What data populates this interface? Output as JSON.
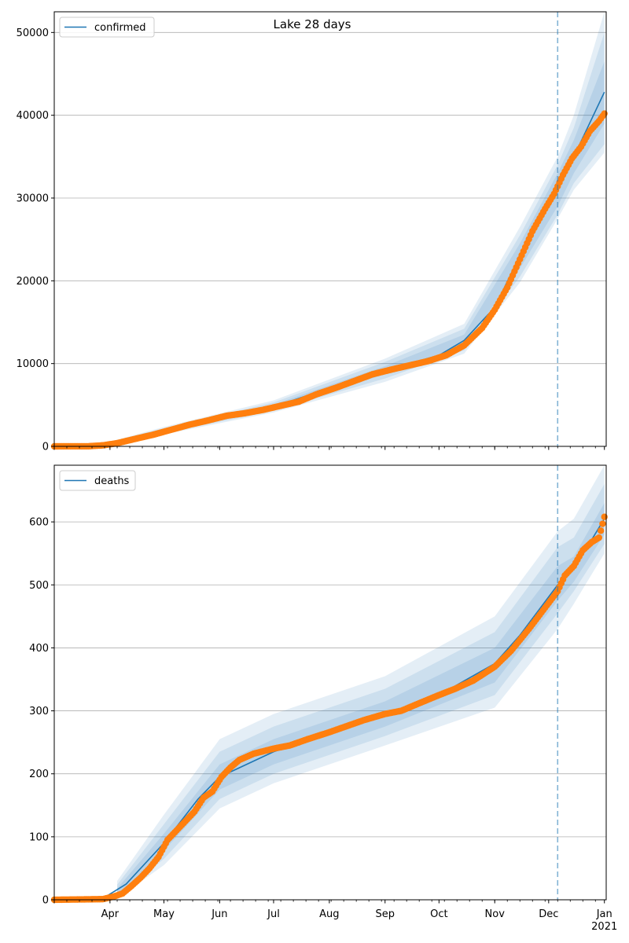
{
  "figure": {
    "title": "Lake 28 days"
  },
  "chart_data": [
    {
      "type": "line",
      "panel": "confirmed",
      "legend": {
        "label": "confirmed",
        "placement": "top-left"
      },
      "ylim": [
        0,
        52500
      ],
      "yticks": [
        0,
        10000,
        20000,
        30000,
        40000,
        50000
      ],
      "ytick_labels": [
        "0",
        "10000",
        "20000",
        "30000",
        "40000",
        "50000"
      ],
      "grid": "horizontal",
      "forecast_start": "2020-12-06",
      "colors": {
        "model": "#1f77b4",
        "observed": "#ff7f0e",
        "band": "#1f77b4"
      },
      "model": [
        [
          "2020-03-01",
          0
        ],
        [
          "2020-03-25",
          80
        ],
        [
          "2020-04-10",
          600
        ],
        [
          "2020-05-01",
          1900
        ],
        [
          "2020-06-01",
          3700
        ],
        [
          "2020-07-01",
          4800
        ],
        [
          "2020-08-01",
          7000
        ],
        [
          "2020-09-01",
          9200
        ],
        [
          "2020-10-01",
          11000
        ],
        [
          "2020-10-15",
          12800
        ],
        [
          "2020-11-01",
          16800
        ],
        [
          "2020-11-15",
          23000
        ],
        [
          "2020-12-01",
          29000
        ],
        [
          "2020-12-06",
          31000
        ],
        [
          "2020-12-15",
          35000
        ],
        [
          "2021-01-01",
          42800
        ]
      ],
      "bands": [
        {
          "lower": [
            [
              "2020-03-25",
              60
            ],
            [
              "2020-05-01",
              1750
            ],
            [
              "2020-07-01",
              4550
            ],
            [
              "2020-09-01",
              8700
            ],
            [
              "2020-10-15",
              12100
            ],
            [
              "2020-11-15",
              21500
            ],
            [
              "2020-12-06",
              29000
            ],
            [
              "2020-12-15",
              33000
            ],
            [
              "2021-01-01",
              39000
            ]
          ],
          "upper": [
            [
              "2020-03-25",
              100
            ],
            [
              "2020-05-01",
              2050
            ],
            [
              "2020-07-01",
              5050
            ],
            [
              "2020-09-01",
              9700
            ],
            [
              "2020-10-15",
              13500
            ],
            [
              "2020-11-15",
              24500
            ],
            [
              "2020-12-06",
              33000
            ],
            [
              "2020-12-15",
              37000
            ],
            [
              "2021-01-01",
              46500
            ]
          ]
        },
        {
          "lower": [
            [
              "2020-03-25",
              40
            ],
            [
              "2020-05-01",
              1600
            ],
            [
              "2020-07-01",
              4300
            ],
            [
              "2020-09-01",
              8200
            ],
            [
              "2020-10-15",
              11600
            ],
            [
              "2020-11-15",
              20500
            ],
            [
              "2020-12-06",
              28000
            ],
            [
              "2020-12-15",
              31800
            ],
            [
              "2021-01-01",
              36500
            ]
          ],
          "upper": [
            [
              "2020-03-25",
              120
            ],
            [
              "2020-05-01",
              2200
            ],
            [
              "2020-07-01",
              5300
            ],
            [
              "2020-09-01",
              10200
            ],
            [
              "2020-10-15",
              14200
            ],
            [
              "2020-11-15",
              25500
            ],
            [
              "2020-12-06",
              34000
            ],
            [
              "2020-12-15",
              38500
            ],
            [
              "2021-01-01",
              50000
            ]
          ]
        },
        {
          "lower": [
            [
              "2020-03-25",
              20
            ],
            [
              "2020-05-01",
              1450
            ],
            [
              "2020-07-01",
              4100
            ],
            [
              "2020-09-01",
              7800
            ],
            [
              "2020-10-15",
              11200
            ],
            [
              "2020-11-15",
              19800
            ],
            [
              "2020-12-06",
              27500
            ],
            [
              "2020-12-15",
              31000
            ],
            [
              "2021-01-01",
              35500
            ]
          ],
          "upper": [
            [
              "2020-03-25",
              140
            ],
            [
              "2020-05-01",
              2350
            ],
            [
              "2020-07-01",
              5550
            ],
            [
              "2020-09-01",
              10600
            ],
            [
              "2020-10-15",
              14800
            ],
            [
              "2020-11-15",
              26500
            ],
            [
              "2020-12-06",
              35000
            ],
            [
              "2020-12-15",
              40000
            ],
            [
              "2021-01-01",
              52500
            ]
          ]
        }
      ],
      "observed": [
        [
          "2020-03-01",
          0
        ],
        [
          "2020-03-20",
          10
        ],
        [
          "2020-03-28",
          120
        ],
        [
          "2020-04-05",
          380
        ],
        [
          "2020-04-15",
          900
        ],
        [
          "2020-04-25",
          1400
        ],
        [
          "2020-05-05",
          2000
        ],
        [
          "2020-05-15",
          2600
        ],
        [
          "2020-05-25",
          3100
        ],
        [
          "2020-06-05",
          3700
        ],
        [
          "2020-06-15",
          4000
        ],
        [
          "2020-06-25",
          4400
        ],
        [
          "2020-07-05",
          4900
        ],
        [
          "2020-07-15",
          5400
        ],
        [
          "2020-07-25",
          6300
        ],
        [
          "2020-08-05",
          7100
        ],
        [
          "2020-08-15",
          7900
        ],
        [
          "2020-08-25",
          8700
        ],
        [
          "2020-09-05",
          9300
        ],
        [
          "2020-09-15",
          9800
        ],
        [
          "2020-09-25",
          10300
        ],
        [
          "2020-10-05",
          11000
        ],
        [
          "2020-10-15",
          12200
        ],
        [
          "2020-10-25",
          14300
        ],
        [
          "2020-11-01",
          16500
        ],
        [
          "2020-11-08",
          19200
        ],
        [
          "2020-11-15",
          22600
        ],
        [
          "2020-11-22",
          26000
        ],
        [
          "2020-11-29",
          28700
        ],
        [
          "2020-12-04",
          30500
        ],
        [
          "2020-12-09",
          32800
        ],
        [
          "2020-12-14",
          34800
        ],
        [
          "2020-12-19",
          36200
        ],
        [
          "2020-12-24",
          38100
        ],
        [
          "2020-12-29",
          39300
        ],
        [
          "2021-01-01",
          40200
        ]
      ]
    },
    {
      "type": "line",
      "panel": "deaths",
      "legend": {
        "label": "deaths",
        "placement": "top-left"
      },
      "ylim": [
        0,
        690
      ],
      "yticks": [
        0,
        100,
        200,
        300,
        400,
        500,
        600
      ],
      "ytick_labels": [
        "0",
        "100",
        "200",
        "300",
        "400",
        "500",
        "600"
      ],
      "grid": "horizontal",
      "forecast_start": "2020-12-06",
      "colors": {
        "model": "#1f77b4",
        "observed": "#ff7f0e",
        "band": "#1f77b4"
      },
      "x_tick_labels": [
        {
          "date": "2020-04-01",
          "label": "Apr"
        },
        {
          "date": "2020-05-01",
          "label": "May"
        },
        {
          "date": "2020-06-01",
          "label": "Jun"
        },
        {
          "date": "2020-07-01",
          "label": "Jul"
        },
        {
          "date": "2020-08-01",
          "label": "Aug"
        },
        {
          "date": "2020-09-01",
          "label": "Sep"
        },
        {
          "date": "2020-10-01",
          "label": "Oct"
        },
        {
          "date": "2020-11-01",
          "label": "Nov"
        },
        {
          "date": "2020-12-01",
          "label": "Dec"
        },
        {
          "date": "2021-01-01",
          "label": "Jan"
        }
      ],
      "x_year_label": "2021",
      "model": [
        [
          "2020-03-01",
          0
        ],
        [
          "2020-03-28",
          2
        ],
        [
          "2020-04-10",
          25
        ],
        [
          "2020-05-01",
          90
        ],
        [
          "2020-05-20",
          160
        ],
        [
          "2020-06-01",
          195
        ],
        [
          "2020-07-01",
          235
        ],
        [
          "2020-08-01",
          265
        ],
        [
          "2020-09-01",
          295
        ],
        [
          "2020-10-01",
          325
        ],
        [
          "2020-11-01",
          375
        ],
        [
          "2020-11-15",
          420
        ],
        [
          "2020-12-06",
          500
        ],
        [
          "2020-12-15",
          525
        ],
        [
          "2021-01-01",
          605
        ]
      ],
      "bands": [
        {
          "lower": [
            [
              "2020-04-05",
              5
            ],
            [
              "2020-05-01",
              78
            ],
            [
              "2020-06-01",
              175
            ],
            [
              "2020-07-01",
              215
            ],
            [
              "2020-09-01",
              275
            ],
            [
              "2020-11-01",
              345
            ],
            [
              "2020-12-06",
              475
            ],
            [
              "2020-12-15",
              505
            ],
            [
              "2021-01-01",
              580
            ]
          ],
          "upper": [
            [
              "2020-04-05",
              18
            ],
            [
              "2020-05-01",
              105
            ],
            [
              "2020-06-01",
              215
            ],
            [
              "2020-07-01",
              255
            ],
            [
              "2020-09-01",
              315
            ],
            [
              "2020-11-01",
              400
            ],
            [
              "2020-12-06",
              530
            ],
            [
              "2020-12-15",
              545
            ],
            [
              "2021-01-01",
              630
            ]
          ]
        },
        {
          "lower": [
            [
              "2020-04-05",
              3
            ],
            [
              "2020-05-01",
              65
            ],
            [
              "2020-06-01",
              160
            ],
            [
              "2020-07-01",
              200
            ],
            [
              "2020-09-01",
              260
            ],
            [
              "2020-11-01",
              325
            ],
            [
              "2020-12-06",
              455
            ],
            [
              "2020-12-15",
              490
            ],
            [
              "2021-01-01",
              565
            ]
          ],
          "upper": [
            [
              "2020-04-05",
              24
            ],
            [
              "2020-05-01",
              120
            ],
            [
              "2020-06-01",
              235
            ],
            [
              "2020-07-01",
              275
            ],
            [
              "2020-09-01",
              335
            ],
            [
              "2020-11-01",
              425
            ],
            [
              "2020-12-06",
              560
            ],
            [
              "2020-12-15",
              575
            ],
            [
              "2021-01-01",
              660
            ]
          ]
        },
        {
          "lower": [
            [
              "2020-04-05",
              2
            ],
            [
              "2020-05-01",
              55
            ],
            [
              "2020-06-01",
              145
            ],
            [
              "2020-07-01",
              185
            ],
            [
              "2020-09-01",
              245
            ],
            [
              "2020-11-01",
              305
            ],
            [
              "2020-12-06",
              430
            ],
            [
              "2020-12-15",
              470
            ],
            [
              "2021-01-01",
              550
            ]
          ],
          "upper": [
            [
              "2020-04-05",
              30
            ],
            [
              "2020-05-01",
              135
            ],
            [
              "2020-06-01",
              255
            ],
            [
              "2020-07-01",
              295
            ],
            [
              "2020-09-01",
              355
            ],
            [
              "2020-11-01",
              450
            ],
            [
              "2020-12-06",
              585
            ],
            [
              "2020-12-15",
              605
            ],
            [
              "2021-01-01",
              690
            ]
          ]
        }
      ],
      "observed": [
        [
          "2020-03-01",
          0
        ],
        [
          "2020-03-28",
          1
        ],
        [
          "2020-04-03",
          5
        ],
        [
          "2020-04-08",
          10
        ],
        [
          "2020-04-13",
          22
        ],
        [
          "2020-04-18",
          35
        ],
        [
          "2020-04-23",
          50
        ],
        [
          "2020-04-28",
          68
        ],
        [
          "2020-05-03",
          95
        ],
        [
          "2020-05-08",
          110
        ],
        [
          "2020-05-13",
          125
        ],
        [
          "2020-05-18",
          140
        ],
        [
          "2020-05-23",
          162
        ],
        [
          "2020-05-28",
          172
        ],
        [
          "2020-06-02",
          195
        ],
        [
          "2020-06-07",
          210
        ],
        [
          "2020-06-12",
          222
        ],
        [
          "2020-06-20",
          232
        ],
        [
          "2020-07-01",
          240
        ],
        [
          "2020-07-10",
          245
        ],
        [
          "2020-07-20",
          255
        ],
        [
          "2020-08-01",
          266
        ],
        [
          "2020-08-10",
          275
        ],
        [
          "2020-08-20",
          285
        ],
        [
          "2020-09-01",
          295
        ],
        [
          "2020-09-10",
          300
        ],
        [
          "2020-09-20",
          312
        ],
        [
          "2020-10-01",
          325
        ],
        [
          "2020-10-10",
          335
        ],
        [
          "2020-10-20",
          348
        ],
        [
          "2020-11-01",
          370
        ],
        [
          "2020-11-10",
          395
        ],
        [
          "2020-11-20",
          430
        ],
        [
          "2020-11-28",
          460
        ],
        [
          "2020-12-06",
          490
        ],
        [
          "2020-12-10",
          515
        ],
        [
          "2020-12-15",
          530
        ],
        [
          "2020-12-20",
          555
        ],
        [
          "2020-12-25",
          568
        ],
        [
          "2020-12-29",
          575
        ],
        [
          "2021-01-01",
          608
        ]
      ]
    }
  ]
}
